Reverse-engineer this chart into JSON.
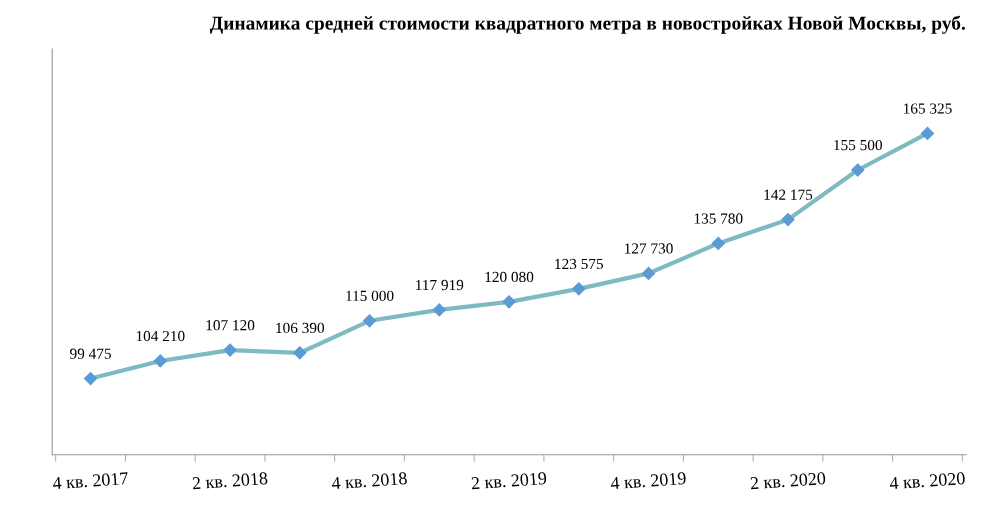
{
  "chart_data": {
    "type": "line",
    "title": "Динамика средней стоимости квадратного метра в новостройках Новой Москвы, руб.",
    "categories": [
      "4 кв. 2017",
      null,
      "2 кв. 2018",
      null,
      "4 кв. 2018",
      null,
      "2 кв. 2019",
      null,
      "4 кв. 2019",
      null,
      "2 кв. 2020",
      null,
      "4 кв. 2020"
    ],
    "series": [
      {
        "color": "#7fb9c1",
        "colors": [
          "#5b9bd5",
          "#5b9bd5",
          "#5b9bd5",
          "#5b9bd5",
          "#5b9bd5",
          "#5b9bd5",
          "#5b9bd5",
          "#5b9bd5",
          "#5b9bd5",
          "#5b9bd5",
          "#5b9bd5",
          "#5b9bd5",
          "#5b9bd5"
        ],
        "values": [
          99475,
          104210,
          107120,
          106390,
          115000,
          117919,
          120080,
          123575,
          127730,
          135780,
          142175,
          155500,
          165325
        ],
        "value_labels": [
          "99 475",
          "104 210",
          "107 120",
          "106 390",
          "115 000",
          "117 919",
          "120 080",
          "123 575",
          "127 730",
          "135 780",
          "142 175",
          "155 500",
          "165 325"
        ]
      }
    ],
    "ylim": [
      79000,
      188000
    ],
    "tick_labels": "x",
    "marker": "diamond",
    "line_style": "solid",
    "grid": false,
    "legend": false
  }
}
